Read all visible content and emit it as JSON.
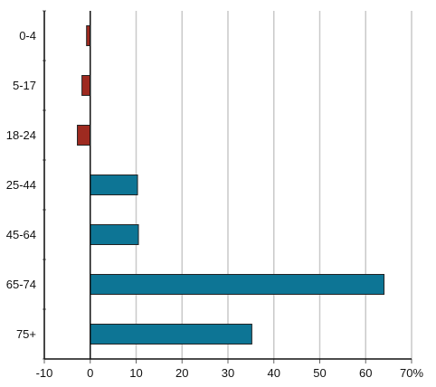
{
  "chart_data": {
    "type": "bar",
    "orientation": "horizontal",
    "categories": [
      "0-4",
      "5-17",
      "18-24",
      "25-44",
      "45-64",
      "65-74",
      "75+"
    ],
    "values": [
      -0.8,
      -1.8,
      -2.8,
      10.3,
      10.5,
      64.0,
      35.2
    ],
    "xlim": [
      -10,
      70
    ],
    "x_ticks": [
      -10,
      0,
      10,
      20,
      30,
      40,
      50,
      60,
      70
    ],
    "x_tick_labels": [
      "-10",
      "0",
      "10",
      "20",
      "30",
      "40",
      "50",
      "60",
      "70%"
    ],
    "title": "",
    "xlabel": "",
    "ylabel": "",
    "grid": "vertical",
    "legend": "none",
    "colors": {
      "positive": "#0d7595",
      "negative": "#9e2a20",
      "grid": "#c9c9c9",
      "axis": "#111111"
    }
  }
}
